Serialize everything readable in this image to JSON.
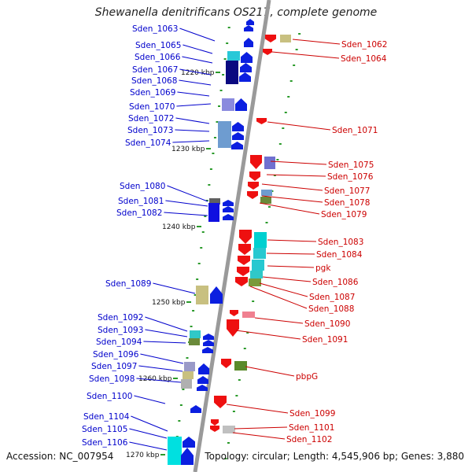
{
  "title": "Shewanella denitrificans OS217, complete genome",
  "accession": "Accession: NC_007954",
  "topology": "Topology: circular; Length: 4,545,906 bp; Genes: 3,880",
  "colors": {
    "left_label": "#0000cc",
    "right_label": "#cc0000",
    "backbone": "#9a9a9a",
    "tick": "#2a9a2a",
    "forward_gene": "#0b1fe0",
    "reverse_gene": "#ee1010"
  },
  "scale_labels": [
    "1220 kbp",
    "1230 kbp",
    "1240 kbp",
    "1250 kbp",
    "1260 kbp",
    "1270 kbp"
  ],
  "left_genes": [
    "Sden_1063",
    "Sden_1065",
    "Sden_1066",
    "Sden_1067",
    "Sden_1068",
    "Sden_1069",
    "Sden_1070",
    "Sden_1072",
    "Sden_1073",
    "Sden_1074",
    "Sden_1080",
    "Sden_1081",
    "Sden_1082",
    "Sden_1089",
    "Sden_1092",
    "Sden_1093",
    "Sden_1094",
    "Sden_1096",
    "Sden_1097",
    "Sden_1098",
    "Sden_1100",
    "Sden_1104",
    "Sden_1105",
    "Sden_1106"
  ],
  "right_genes": [
    "Sden_1062",
    "Sden_1064",
    "Sden_1071",
    "Sden_1075",
    "Sden_1076",
    "Sden_1077",
    "Sden_1078",
    "Sden_1079",
    "Sden_1083",
    "Sden_1084",
    "pgk",
    "Sden_1086",
    "Sden_1087",
    "Sden_1088",
    "Sden_1090",
    "Sden_1091",
    "pbpG",
    "Sden_1099",
    "Sden_1101",
    "Sden_1102"
  ]
}
